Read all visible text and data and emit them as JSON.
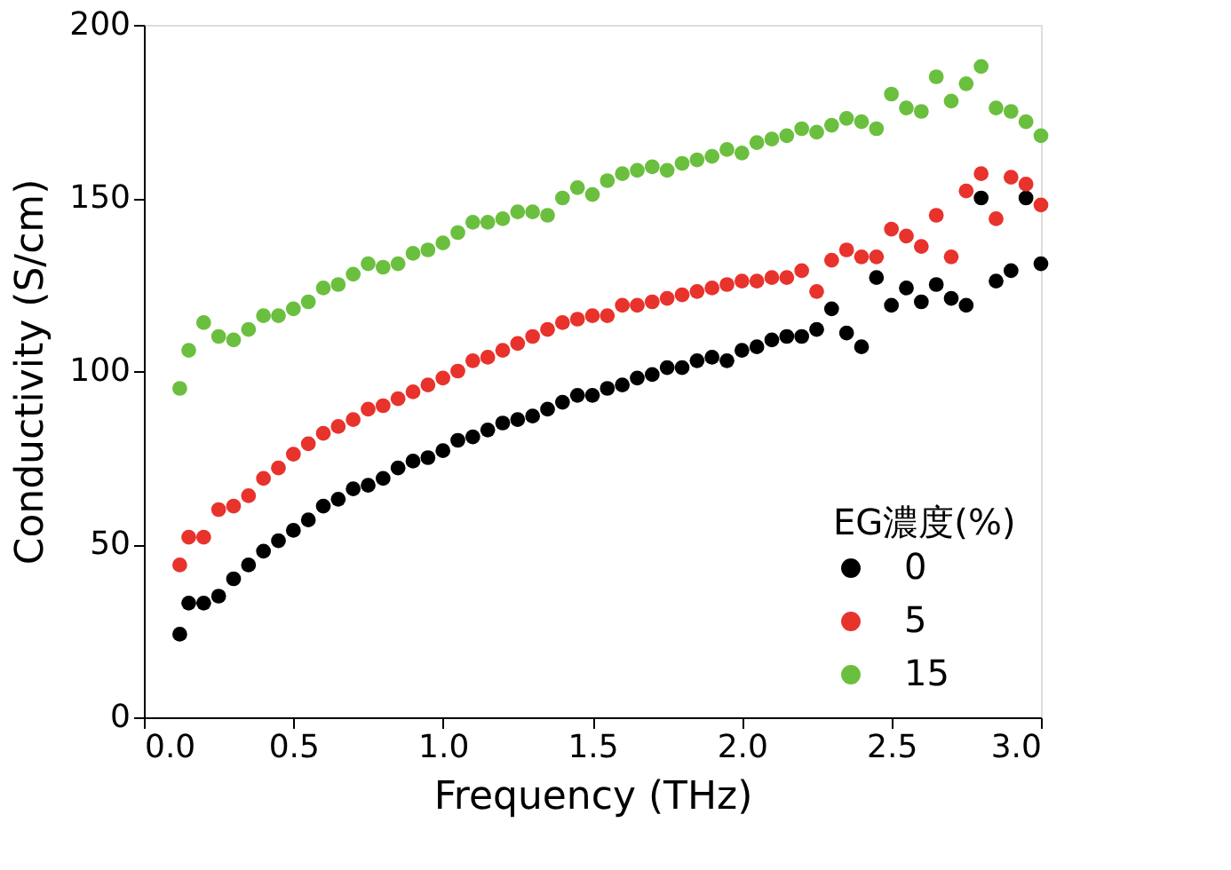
{
  "chart_data": {
    "type": "scatter",
    "xlabel": "Frequency (THz)",
    "ylabel": "Conductivity (S/cm)",
    "legend_title": "EG濃度(%)",
    "legend": "bottom right",
    "grid": false,
    "marker": "circle",
    "xlim": [
      0,
      3
    ],
    "ylim": [
      0,
      200
    ],
    "xticks": [
      {
        "value": 0,
        "label": "0.0"
      },
      {
        "value": 0.5,
        "label": "0.5"
      },
      {
        "value": 1,
        "label": "1.0"
      },
      {
        "value": 1.5,
        "label": "1.5"
      },
      {
        "value": 2,
        "label": "2.0"
      },
      {
        "value": 2.5,
        "label": "2.5"
      },
      {
        "value": 3,
        "label": "3.0"
      }
    ],
    "yticks": [
      0,
      50,
      100,
      150,
      200
    ],
    "x": [
      0.12,
      0.15,
      0.2,
      0.25,
      0.3,
      0.35,
      0.4,
      0.45,
      0.5,
      0.55,
      0.6,
      0.65,
      0.7,
      0.75,
      0.8,
      0.85,
      0.9,
      0.95,
      1.0,
      1.05,
      1.1,
      1.15,
      1.2,
      1.25,
      1.3,
      1.35,
      1.4,
      1.45,
      1.5,
      1.55,
      1.6,
      1.65,
      1.7,
      1.75,
      1.8,
      1.85,
      1.9,
      1.95,
      2.0,
      2.05,
      2.1,
      2.15,
      2.2,
      2.25,
      2.3,
      2.35,
      2.4,
      2.45,
      2.5,
      2.55,
      2.6,
      2.65,
      2.7,
      2.75,
      2.8,
      2.85,
      2.9,
      2.95,
      3.0
    ],
    "series": [
      {
        "name": "0",
        "color": "#000000",
        "values": [
          24,
          33,
          33,
          35,
          40,
          44,
          48,
          51,
          54,
          57,
          61,
          63,
          66,
          67,
          69,
          72,
          74,
          75,
          77,
          80,
          81,
          83,
          85,
          86,
          87,
          89,
          91,
          93,
          93,
          95,
          96,
          98,
          99,
          101,
          101,
          103,
          104,
          103,
          106,
          107,
          109,
          110,
          110,
          112,
          118,
          111,
          107,
          127,
          119,
          124,
          120,
          125,
          121,
          119,
          150,
          126,
          129,
          150,
          131
        ]
      },
      {
        "name": "5",
        "color": "#e8322c",
        "values": [
          44,
          52,
          52,
          60,
          61,
          64,
          69,
          72,
          76,
          79,
          82,
          84,
          86,
          89,
          90,
          92,
          94,
          96,
          98,
          100,
          103,
          104,
          106,
          108,
          110,
          112,
          114,
          115,
          116,
          116,
          119,
          119,
          120,
          121,
          122,
          123,
          124,
          125,
          126,
          126,
          127,
          127,
          129,
          123,
          132,
          135,
          133,
          133,
          141,
          139,
          136,
          145,
          133,
          152,
          157,
          144,
          156,
          154,
          148
        ]
      },
      {
        "name": "15",
        "color": "#6bbf3e",
        "values": [
          95,
          106,
          114,
          110,
          109,
          112,
          116,
          116,
          118,
          120,
          124,
          125,
          128,
          131,
          130,
          131,
          134,
          135,
          137,
          140,
          143,
          143,
          144,
          146,
          146,
          145,
          150,
          153,
          151,
          155,
          157,
          158,
          159,
          158,
          160,
          161,
          162,
          164,
          163,
          166,
          167,
          168,
          170,
          169,
          171,
          173,
          172,
          170,
          180,
          176,
          175,
          185,
          178,
          183,
          188,
          176,
          175,
          172,
          168
        ]
      }
    ]
  }
}
